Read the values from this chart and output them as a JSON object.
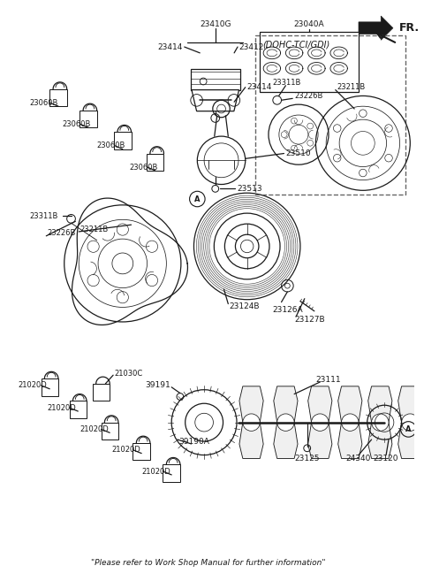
{
  "background_color": "#ffffff",
  "line_color": "#1a1a1a",
  "footer": "\"Please refer to Work Shop Manual for further information\"",
  "fr_label": "FR.",
  "dohc_box_label": "(DOHC-TCI/GDI)"
}
